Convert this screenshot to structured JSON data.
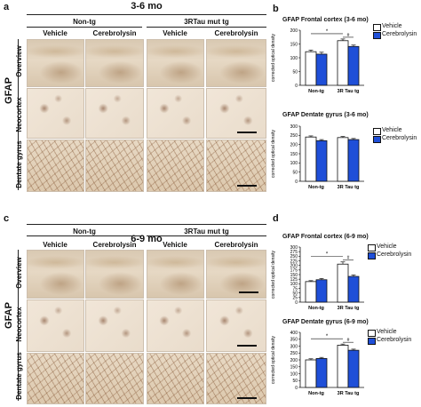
{
  "figure": {
    "panel_a": "a",
    "panel_b": "b",
    "panel_c": "c",
    "panel_d": "d",
    "stain_label": "GFAP",
    "top_age": "3-6 mo",
    "bottom_age": "6-9 mo",
    "group_nontg": "Non-tg",
    "group_tg": "3RTau mut tg",
    "treat_vehicle": "Vehicle",
    "treat_cerebrolysin": "Cerebrolysin",
    "row_overview": "Overview",
    "row_neocortex": "Neocortex",
    "row_dentate": "Dentate gyrus"
  },
  "colors": {
    "vehicle": "#ffffff",
    "cerebrolysin": "#1f4fd8",
    "bar_stroke": "#111111"
  },
  "chart_data": [
    {
      "type": "bar",
      "title": "GFAP Frontal cortex (3-6 mo)",
      "ylabel": "corrected optical density",
      "categories": [
        "Non-tg",
        "3R Tau tg"
      ],
      "series": [
        {
          "name": "Vehicle",
          "values": [
            122,
            162
          ],
          "errors": [
            6,
            6
          ]
        },
        {
          "name": "Cerebrolysin",
          "values": [
            113,
            141
          ],
          "errors": [
            7,
            5
          ]
        }
      ],
      "ylim": [
        0,
        200
      ],
      "yticks": [
        0,
        50,
        100,
        150,
        200
      ],
      "annotations": [
        "*",
        "#"
      ],
      "legend": "right"
    },
    {
      "type": "bar",
      "title": "GFAP Dentate gyrus (3-6 mo)",
      "ylabel": "corrected optical density",
      "categories": [
        "Non-tg",
        "3R Tau tg"
      ],
      "series": [
        {
          "name": "Vehicle",
          "values": [
            241,
            238
          ],
          "errors": [
            6,
            6
          ]
        },
        {
          "name": "Cerebrolysin",
          "values": [
            221,
            227
          ],
          "errors": [
            6,
            6
          ]
        }
      ],
      "ylim": [
        0,
        300
      ],
      "yticks": [
        0,
        50,
        100,
        150,
        200,
        250,
        300
      ],
      "annotations": [],
      "legend": "right"
    },
    {
      "type": "bar",
      "title": "GFAP Frontal cortex (6-9 mo)",
      "ylabel": "corrected optical density",
      "categories": [
        "Non-tg",
        "3R Tau tg"
      ],
      "series": [
        {
          "name": "Vehicle",
          "values": [
            112,
            207
          ],
          "errors": [
            5,
            12
          ]
        },
        {
          "name": "Cerebrolysin",
          "values": [
            122,
            140
          ],
          "errors": [
            7,
            8
          ]
        }
      ],
      "ylim": [
        0,
        300
      ],
      "yticks": [
        0,
        25,
        50,
        75,
        100,
        125,
        150,
        175,
        200,
        225,
        250,
        275,
        300
      ],
      "annotations": [
        "*",
        "#"
      ],
      "legend": "right"
    },
    {
      "type": "bar",
      "title": "GFAP Dentate gyrus (6-9 mo)",
      "ylabel": "corrected optical density",
      "categories": [
        "Non-tg",
        "3R Tau tg"
      ],
      "series": [
        {
          "name": "Vehicle",
          "values": [
            200,
            307
          ],
          "errors": [
            8,
            8
          ]
        },
        {
          "name": "Cerebrolysin",
          "values": [
            210,
            270
          ],
          "errors": [
            8,
            8
          ]
        }
      ],
      "ylim": [
        0,
        400
      ],
      "yticks": [
        0,
        50,
        100,
        150,
        200,
        250,
        300,
        350,
        400
      ],
      "annotations": [
        "*",
        "#"
      ],
      "legend": "right"
    }
  ]
}
